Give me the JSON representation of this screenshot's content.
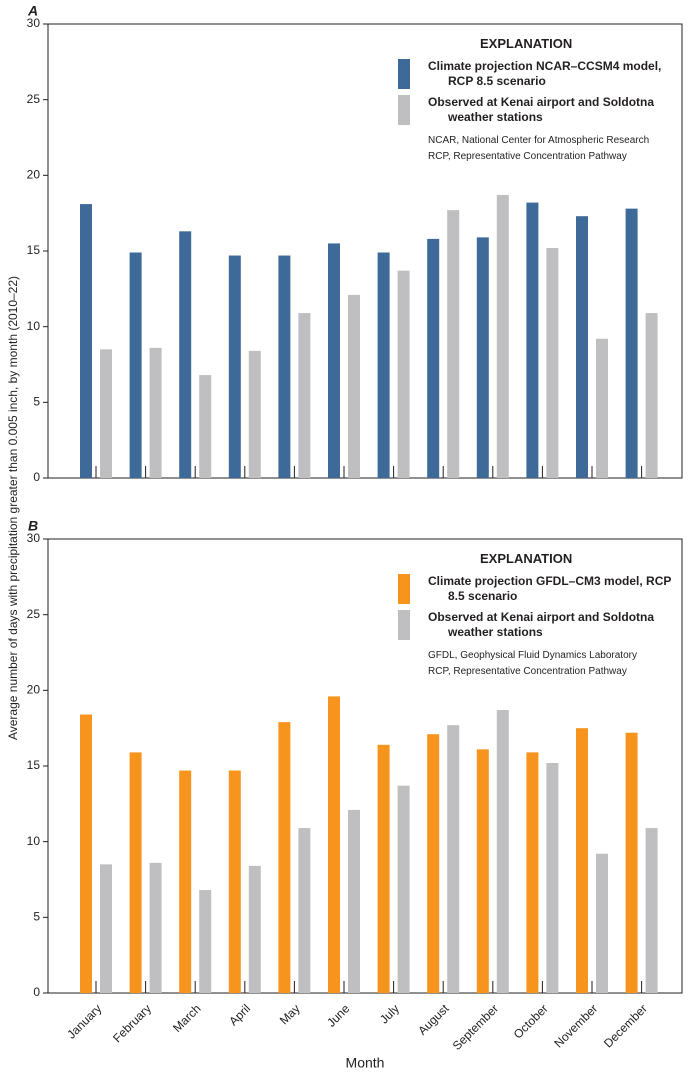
{
  "chart_data": [
    {
      "type": "bar",
      "panel": "A",
      "ylabel": "Average number of days with precipitation greater than 0.005 inch, by month (2010–22)",
      "categories": [
        null,
        null,
        null,
        null,
        null,
        null,
        null,
        null,
        null,
        null,
        null,
        null
      ],
      "series": [
        {
          "name": "Climate projection NCAR–CCSM4 model, RCP 8.5 scenario",
          "color": "#3d6a99",
          "values": [
            18.1,
            14.9,
            16.3,
            14.7,
            14.7,
            15.5,
            14.9,
            15.8,
            15.9,
            18.2,
            17.3,
            17.8
          ]
        },
        {
          "name": "Observed at Kenai airport and Soldotna weather stations",
          "color": "#bfbfc1",
          "values": [
            8.5,
            8.6,
            6.8,
            8.4,
            10.9,
            12.1,
            13.7,
            17.7,
            18.7,
            15.2,
            9.2,
            10.9
          ]
        }
      ],
      "legend_title": "EXPLANATION",
      "notes": [
        "NCAR, National Center for Atmospheric Research",
        "RCP, Representative Concentration Pathway"
      ],
      "ylim": [
        0,
        30
      ],
      "yticks": [
        0,
        5,
        10,
        15,
        20,
        25,
        30
      ],
      "grid": false
    },
    {
      "type": "bar",
      "panel": "B",
      "xlabel": "Month",
      "categories": [
        "January",
        "February",
        "March",
        "April",
        "May",
        "June",
        "July",
        "August",
        "September",
        "October",
        "November",
        "December"
      ],
      "series": [
        {
          "name": "Climate projection GFDL–CM3 model, RCP 8.5 scenario",
          "color": "#f7941d",
          "values": [
            18.4,
            15.9,
            14.7,
            14.7,
            17.9,
            19.6,
            16.4,
            17.1,
            16.1,
            15.9,
            17.5,
            17.2
          ]
        },
        {
          "name": "Observed at Kenai airport and Soldotna weather stations",
          "color": "#bfbfc1",
          "values": [
            8.5,
            8.6,
            6.8,
            8.4,
            10.9,
            12.1,
            13.7,
            17.7,
            18.7,
            15.2,
            9.2,
            10.9
          ]
        }
      ],
      "legend_title": "EXPLANATION",
      "notes": [
        "GFDL, Geophysical Fluid Dynamics Laboratory",
        "RCP, Representative Concentration Pathway"
      ],
      "ylim": [
        0,
        30
      ],
      "yticks": [
        0,
        5,
        10,
        15,
        20,
        25,
        30
      ],
      "grid": false
    }
  ]
}
